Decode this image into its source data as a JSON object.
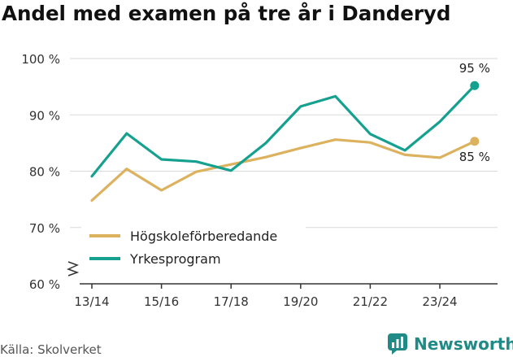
{
  "title": "Andel med examen på tre år i Danderyd",
  "source": "Källa: Skolverket",
  "brand": "Newsworthy",
  "colors": {
    "hogskole": "#dcb25f",
    "yrkes": "#16a090",
    "grid": "#d9d9d9",
    "axis": "#333333",
    "brand": "#1f8a86"
  },
  "chart_data": {
    "type": "line",
    "title": "Andel med examen på tre år i Danderyd",
    "xlabel": "",
    "ylabel": "",
    "ylim": [
      60,
      100
    ],
    "yticks": [
      60,
      70,
      80,
      90,
      100
    ],
    "ytick_labels": [
      "60 %",
      "70 %",
      "80 %",
      "90 %",
      "100 %"
    ],
    "x": [
      "13/14",
      "14/15",
      "15/16",
      "16/17",
      "17/18",
      "18/19",
      "19/20",
      "20/21",
      "21/22",
      "22/23",
      "23/24",
      "24/25"
    ],
    "xtick_labels": [
      "13/14",
      "15/16",
      "17/18",
      "19/20",
      "21/22",
      "23/24"
    ],
    "axis_break": true,
    "legend_position": "bottom-left",
    "series": [
      {
        "name": "Högskoleförberedande",
        "color_key": "hogskole",
        "values": [
          74.8,
          80.4,
          76.6,
          79.9,
          81.2,
          82.5,
          84.1,
          85.6,
          85.1,
          82.9,
          82.4,
          85.3
        ],
        "end_label": "85 %"
      },
      {
        "name": "Yrkesprogram",
        "color_key": "yrkes",
        "values": [
          79.1,
          86.7,
          82.1,
          81.7,
          80.1,
          85.0,
          91.5,
          93.3,
          86.6,
          83.7,
          88.8,
          95.2
        ],
        "end_label": "95 %"
      }
    ]
  }
}
